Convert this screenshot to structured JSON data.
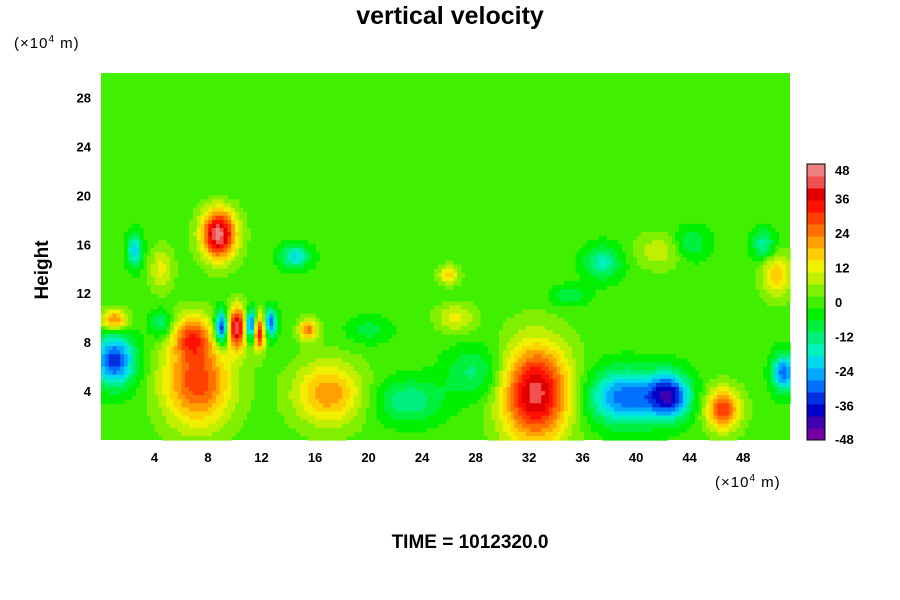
{
  "chart_data": {
    "type": "heatmap",
    "title": "vertical velocity",
    "ylabel": "Height",
    "xlabel": "",
    "x_unit": "(×10",
    "x_unit_exp": "4",
    "x_unit_tail": " m)",
    "y_unit": "(×10",
    "y_unit_exp": "4",
    "y_unit_tail": " m)",
    "xlim": [
      0,
      51.5
    ],
    "ylim": [
      0,
      30
    ],
    "x_ticks": [
      4,
      8,
      12,
      16,
      20,
      24,
      28,
      32,
      36,
      40,
      44,
      48
    ],
    "y_ticks": [
      4,
      8,
      12,
      16,
      20,
      24,
      28
    ],
    "colorbar": {
      "range": [
        -48,
        48
      ],
      "ticks": [
        48,
        36,
        24,
        12,
        0,
        -12,
        -24,
        -36,
        -48
      ],
      "colors": [
        "#7000a0",
        "#4000b0",
        "#0000c8",
        "#0030e0",
        "#0070ff",
        "#00a8ff",
        "#00d8f0",
        "#00f0c0",
        "#00f080",
        "#00f040",
        "#00f000",
        "#40f000",
        "#80f000",
        "#c0f000",
        "#f0f000",
        "#ffd000",
        "#ffa000",
        "#ff7000",
        "#ff4000",
        "#ff1000",
        "#e00000",
        "#f05050",
        "#f08080"
      ]
    },
    "blobs": [
      {
        "x": 7.2,
        "y": 4.8,
        "sx": 1.8,
        "sy": 2.6,
        "v": 30
      },
      {
        "x": 6.8,
        "y": 8.5,
        "sx": 1.0,
        "sy": 1.2,
        "v": 22
      },
      {
        "x": 17.0,
        "y": 3.8,
        "sx": 1.8,
        "sy": 1.8,
        "v": 22
      },
      {
        "x": 32.5,
        "y": 3.8,
        "sx": 1.8,
        "sy": 2.8,
        "v": 42
      },
      {
        "x": 46.5,
        "y": 2.5,
        "sx": 0.9,
        "sy": 1.2,
        "v": 30
      },
      {
        "x": 8.8,
        "y": 16.8,
        "sx": 0.9,
        "sy": 1.4,
        "v": 46
      },
      {
        "x": 10.2,
        "y": 9.2,
        "sx": 0.5,
        "sy": 1.2,
        "v": 40
      },
      {
        "x": 11.8,
        "y": 8.8,
        "sx": 0.3,
        "sy": 1.0,
        "v": 38
      },
      {
        "x": 15.5,
        "y": 9.0,
        "sx": 0.5,
        "sy": 0.6,
        "v": 25
      },
      {
        "x": 1.0,
        "y": 9.8,
        "sx": 0.7,
        "sy": 0.6,
        "v": 25
      },
      {
        "x": 9.0,
        "y": 9.2,
        "sx": 0.35,
        "sy": 1.0,
        "v": -40
      },
      {
        "x": 11.2,
        "y": 9.4,
        "sx": 0.3,
        "sy": 0.9,
        "v": -40
      },
      {
        "x": 12.7,
        "y": 9.6,
        "sx": 0.3,
        "sy": 0.8,
        "v": -32
      },
      {
        "x": 1.0,
        "y": 6.5,
        "sx": 1.1,
        "sy": 1.5,
        "v": -34
      },
      {
        "x": 39.2,
        "y": 3.5,
        "sx": 2.0,
        "sy": 1.6,
        "v": -30
      },
      {
        "x": 42.5,
        "y": 3.6,
        "sx": 1.1,
        "sy": 1.3,
        "v": -34
      },
      {
        "x": 51.0,
        "y": 5.5,
        "sx": 0.6,
        "sy": 1.1,
        "v": -30
      },
      {
        "x": 23.0,
        "y": 3.2,
        "sx": 1.8,
        "sy": 1.3,
        "v": -14
      },
      {
        "x": 28.0,
        "y": 5.5,
        "sx": 1.6,
        "sy": 1.5,
        "v": -12
      },
      {
        "x": 2.5,
        "y": 15.5,
        "sx": 0.4,
        "sy": 1.0,
        "v": -22
      },
      {
        "x": 14.5,
        "y": 15.0,
        "sx": 0.8,
        "sy": 0.7,
        "v": -20
      },
      {
        "x": 37.5,
        "y": 14.5,
        "sx": 1.0,
        "sy": 1.0,
        "v": -16
      },
      {
        "x": 49.5,
        "y": 16.0,
        "sx": 0.6,
        "sy": 0.9,
        "v": -16
      },
      {
        "x": 44.0,
        "y": 16.0,
        "sx": 1.0,
        "sy": 1.0,
        "v": -12
      },
      {
        "x": 26.0,
        "y": 13.5,
        "sx": 0.5,
        "sy": 0.5,
        "v": 18
      },
      {
        "x": 42.0,
        "y": 15.5,
        "sx": 1.4,
        "sy": 1.0,
        "v": 10
      },
      {
        "x": 50.5,
        "y": 13.5,
        "sx": 0.8,
        "sy": 1.2,
        "v": 18
      },
      {
        "x": 35.0,
        "y": 11.8,
        "sx": 1.0,
        "sy": 0.6,
        "v": -10
      },
      {
        "x": 20.0,
        "y": 9.0,
        "sx": 1.2,
        "sy": 0.8,
        "v": -8
      },
      {
        "x": 26.5,
        "y": 10.0,
        "sx": 1.0,
        "sy": 0.8,
        "v": 12
      },
      {
        "x": 4.5,
        "y": 14.0,
        "sx": 0.6,
        "sy": 1.2,
        "v": 12
      },
      {
        "x": 4.5,
        "y": 9.5,
        "sx": 0.6,
        "sy": 0.8,
        "v": -14
      }
    ]
  },
  "footer": {
    "time_label": "TIME = 1012320.0"
  }
}
